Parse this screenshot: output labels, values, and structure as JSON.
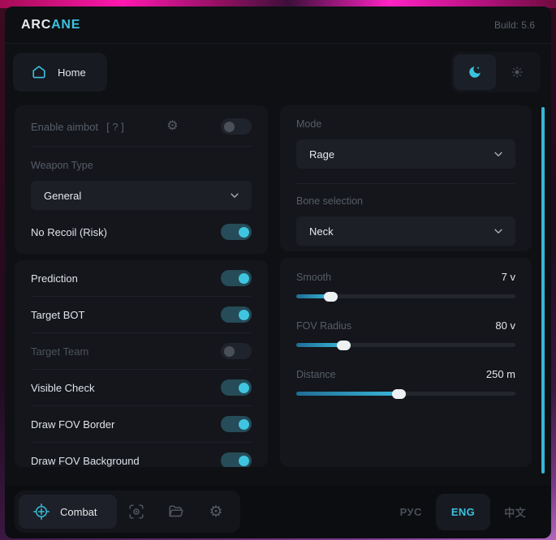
{
  "header": {
    "brand_primary": "ARC",
    "brand_accent": "ANE",
    "build_label": "Build: 5.6"
  },
  "nav": {
    "home_label": "Home"
  },
  "theme": {
    "dark_icon": "moon-icon",
    "light_icon": "sun-icon",
    "active": "dark"
  },
  "aimbot": {
    "enable_label": "Enable aimbot",
    "enable_hint": "[ ? ]",
    "enable_state": "off",
    "weapon_type_label": "Weapon Type",
    "weapon_type_value": "General",
    "no_recoil_label": "No Recoil (Risk)",
    "no_recoil_state": "on",
    "options": [
      {
        "label": "Prediction",
        "state": "on"
      },
      {
        "label": "Target BOT",
        "state": "on"
      },
      {
        "label": "Target Team",
        "state": "off",
        "disabled": true
      },
      {
        "label": "Visible Check",
        "state": "on"
      },
      {
        "label": "Draw FOV Border",
        "state": "on"
      },
      {
        "label": "Draw FOV Background",
        "state": "on"
      }
    ]
  },
  "targeting": {
    "mode_label": "Mode",
    "mode_value": "Rage",
    "bone_label": "Bone selection",
    "bone_value": "Neck",
    "sliders": [
      {
        "label": "Smooth",
        "value": "7 v",
        "percent": 16
      },
      {
        "label": "FOV Radius",
        "value": "80 v",
        "percent": 22
      },
      {
        "label": "Distance",
        "value": "250 m",
        "percent": 47
      }
    ]
  },
  "footer": {
    "combat_tab_label": "Combat",
    "icon_buttons": [
      "scan-eye-icon",
      "folder-open-icon",
      "settings-gear-icon"
    ],
    "languages": [
      {
        "label": "РУС",
        "active": false
      },
      {
        "label": "ENG",
        "active": true
      },
      {
        "label": "中文",
        "active": false
      }
    ]
  },
  "colors": {
    "accent": "#3cc1de",
    "window": "#0e1014",
    "panel": "#14161c"
  }
}
